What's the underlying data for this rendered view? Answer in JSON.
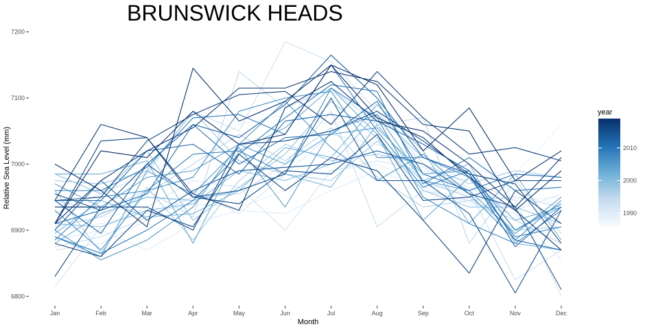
{
  "chart_data": {
    "type": "line",
    "title": "BRUNSWICK HEADS",
    "xlabel": "Month",
    "ylabel": "Relative Sea Level (mm)",
    "categories": [
      "Jan",
      "Feb",
      "Mar",
      "Apr",
      "May",
      "Jun",
      "Jul",
      "Aug",
      "Sep",
      "Oct",
      "Nov",
      "Dec"
    ],
    "yticks": [
      6800,
      6900,
      7000,
      7100,
      7200
    ],
    "ylim": [
      6792,
      7213
    ],
    "grid": false,
    "legend": {
      "title": "year",
      "placement": "right",
      "type": "colorbar",
      "ticks": [
        1990,
        2000,
        2010
      ],
      "range": [
        1986,
        2019
      ],
      "colors": [
        "#f7fbff",
        "#c6dbef",
        "#6baed6",
        "#2171b5",
        "#08306b"
      ]
    },
    "series": [
      {
        "year": 1986,
        "values": [
          7092,
          7055,
          7065,
          7095,
          7082,
          7070,
          7060,
          7055,
          7048,
          7040,
          7040,
          7115
        ]
      },
      {
        "year": 1987,
        "values": [
          6950,
          6920,
          6930,
          6960,
          6990,
          7000,
          7020,
          6995,
          6970,
          6960,
          6950,
          6940
        ]
      },
      {
        "year": 1988,
        "values": [
          6940,
          6925,
          6990,
          7010,
          7060,
          7075,
          7060,
          7080,
          7030,
          6990,
          6985,
          7060
        ]
      },
      {
        "year": 1989,
        "values": [
          6900,
          6910,
          6925,
          6940,
          6935,
          6960,
          6990,
          7000,
          6970,
          6955,
          6945,
          6950
        ]
      },
      {
        "year": 1990,
        "values": [
          6885,
          6900,
          6870,
          6910,
          6930,
          6925,
          6960,
          6990,
          6965,
          6940,
          6925,
          6855
        ]
      },
      {
        "year": 1991,
        "values": [
          6870,
          6880,
          6915,
          6960,
          6925,
          6985,
          7045,
          7030,
          6995,
          6965,
          6930,
          6955
        ]
      },
      {
        "year": 1992,
        "values": [
          6815,
          6905,
          6935,
          6975,
          6965,
          6900,
          6990,
          7005,
          6990,
          6975,
          6945,
          6800
        ]
      },
      {
        "year": 1993,
        "values": [
          6925,
          6955,
          6985,
          7080,
          7050,
          7185,
          7155,
          7080,
          7000,
          6960,
          6825,
          6870
        ]
      },
      {
        "year": 1994,
        "values": [
          6875,
          6890,
          6920,
          6950,
          6955,
          7000,
          7080,
          6905,
          6960,
          6945,
          6950,
          6935
        ]
      },
      {
        "year": 1995,
        "values": [
          6945,
          6930,
          6960,
          6920,
          7140,
          7085,
          7115,
          7060,
          7070,
          6880,
          6975,
          6895
        ]
      },
      {
        "year": 1996,
        "values": [
          6905,
          6920,
          6955,
          7000,
          7045,
          7005,
          7055,
          6980,
          6935,
          6945,
          6915,
          6880
        ]
      },
      {
        "year": 1997,
        "values": [
          6960,
          6865,
          6965,
          6885,
          6975,
          7030,
          7005,
          7015,
          7000,
          6970,
          6990,
          6980
        ]
      },
      {
        "year": 1998,
        "values": [
          6975,
          6970,
          6990,
          7080,
          7005,
          6985,
          6975,
          7035,
          6975,
          6950,
          6900,
          6905
        ]
      },
      {
        "year": 1999,
        "values": [
          6985,
          6955,
          7020,
          6915,
          6965,
          7015,
          7095,
          7040,
          6960,
          6935,
          6935,
          6910
        ]
      },
      {
        "year": 2000,
        "values": [
          6910,
          6905,
          6930,
          6940,
          6990,
          6975,
          7000,
          7075,
          7010,
          6985,
          6890,
          6905
        ]
      },
      {
        "year": 2001,
        "values": [
          6895,
          6945,
          6920,
          6925,
          6960,
          6985,
          6965,
          7060,
          6975,
          7000,
          6880,
          6870
        ]
      },
      {
        "year": 2002,
        "values": [
          6880,
          6925,
          6950,
          6945,
          6960,
          7025,
          7010,
          7090,
          7020,
          6910,
          6985,
          6885
        ]
      },
      {
        "year": 2003,
        "values": [
          6985,
          6985,
          7005,
          6880,
          7020,
          7055,
          7115,
          7045,
          6915,
          6980,
          6915,
          6935
        ]
      },
      {
        "year": 2004,
        "values": [
          6970,
          6935,
          6980,
          6990,
          7030,
          7000,
          7045,
          7055,
          6985,
          6990,
          6900,
          6935
        ]
      },
      {
        "year": 2005,
        "values": [
          6890,
          6860,
          6990,
          6955,
          7025,
          6935,
          7050,
          7075,
          6975,
          6960,
          6895,
          6950
        ]
      },
      {
        "year": 2006,
        "values": [
          6900,
          6855,
          6885,
          6935,
          7030,
          7095,
          7025,
          6975,
          7015,
          6955,
          6885,
          6945
        ]
      },
      {
        "year": 2007,
        "values": [
          6930,
          6870,
          6960,
          6980,
          7080,
          7100,
          7110,
          7010,
          7010,
          6980,
          6890,
          6905
        ]
      },
      {
        "year": 2008,
        "values": [
          6885,
          6950,
          6960,
          7015,
          7020,
          6985,
          7115,
          7070,
          6950,
          6910,
          6880,
          6930
        ]
      },
      {
        "year": 2009,
        "values": [
          6960,
          6960,
          6995,
          7070,
          7075,
          7045,
          7150,
          7050,
          6965,
          6990,
          6900,
          6940
        ]
      },
      {
        "year": 2010,
        "values": [
          6890,
          6865,
          6900,
          6945,
          7015,
          7070,
          7120,
          7110,
          6970,
          7010,
          6960,
          6965
        ]
      },
      {
        "year": 2011,
        "values": [
          6910,
          6930,
          6955,
          7060,
          7000,
          7040,
          7045,
          7095,
          6985,
          6960,
          6985,
          6980
        ]
      },
      {
        "year": 2012,
        "values": [
          6945,
          6945,
          7020,
          7030,
          6985,
          7065,
          7075,
          7065,
          7030,
          6990,
          6885,
          6870
        ]
      },
      {
        "year": 2013,
        "values": [
          6945,
          6895,
          7000,
          7060,
          7040,
          7090,
          7165,
          7100,
          7010,
          6985,
          6875,
          6935
        ]
      },
      {
        "year": 2014,
        "values": [
          6900,
          6975,
          6915,
          6960,
          6990,
          6995,
          7000,
          7020,
          7000,
          6955,
          6935,
          6810
        ]
      },
      {
        "year": 2015,
        "values": [
          6955,
          6930,
          7000,
          6950,
          6960,
          6985,
          7100,
          6975,
          6975,
          6925,
          6805,
          6930
        ]
      },
      {
        "year": 2016,
        "values": [
          6830,
          6935,
          6935,
          6900,
          7030,
          7035,
          7050,
          7080,
          7035,
          6985,
          6970,
          6880
        ]
      },
      {
        "year": 2017,
        "values": [
          6880,
          6860,
          6930,
          6905,
          7015,
          6960,
          7010,
          6990,
          6915,
          6835,
          6960,
          6910
        ]
      },
      {
        "year": 2018,
        "values": [
          6945,
          7060,
          7040,
          6955,
          6930,
          7085,
          7125,
          7065,
          7050,
          7000,
          6935,
          7010
        ]
      },
      {
        "year": 2019,
        "values": [
          6910,
          7020,
          7010,
          7080,
          7030,
          7045,
          7150,
          7070,
          7040,
          6980,
          6930,
          6990
        ]
      },
      {
        "year": 2019,
        "values": [
          6935,
          6935,
          null,
          null,
          null,
          null,
          null,
          null,
          null,
          null,
          null,
          null
        ]
      },
      {
        "year": 2019,
        "values": [
          7000,
          6960,
          6905,
          7145,
          7065,
          7095,
          7150,
          7120,
          7020,
          7085,
          6975,
          7020
        ]
      },
      {
        "year": 2018,
        "values": [
          6910,
          6975,
          7020,
          7055,
          7115,
          7115,
          7140,
          7125,
          7060,
          7050,
          6930,
          6870
        ]
      },
      {
        "year": 2017,
        "values": [
          6945,
          6950,
          7035,
          7075,
          7105,
          7110,
          7060,
          7140,
          7070,
          7015,
          7025,
          7005
        ]
      },
      {
        "year": 2016,
        "values": [
          6910,
          7035,
          7040,
          6950,
          6940,
          6990,
          6985,
          7045,
          6945,
          6950,
          6975,
          6975
        ]
      }
    ]
  }
}
